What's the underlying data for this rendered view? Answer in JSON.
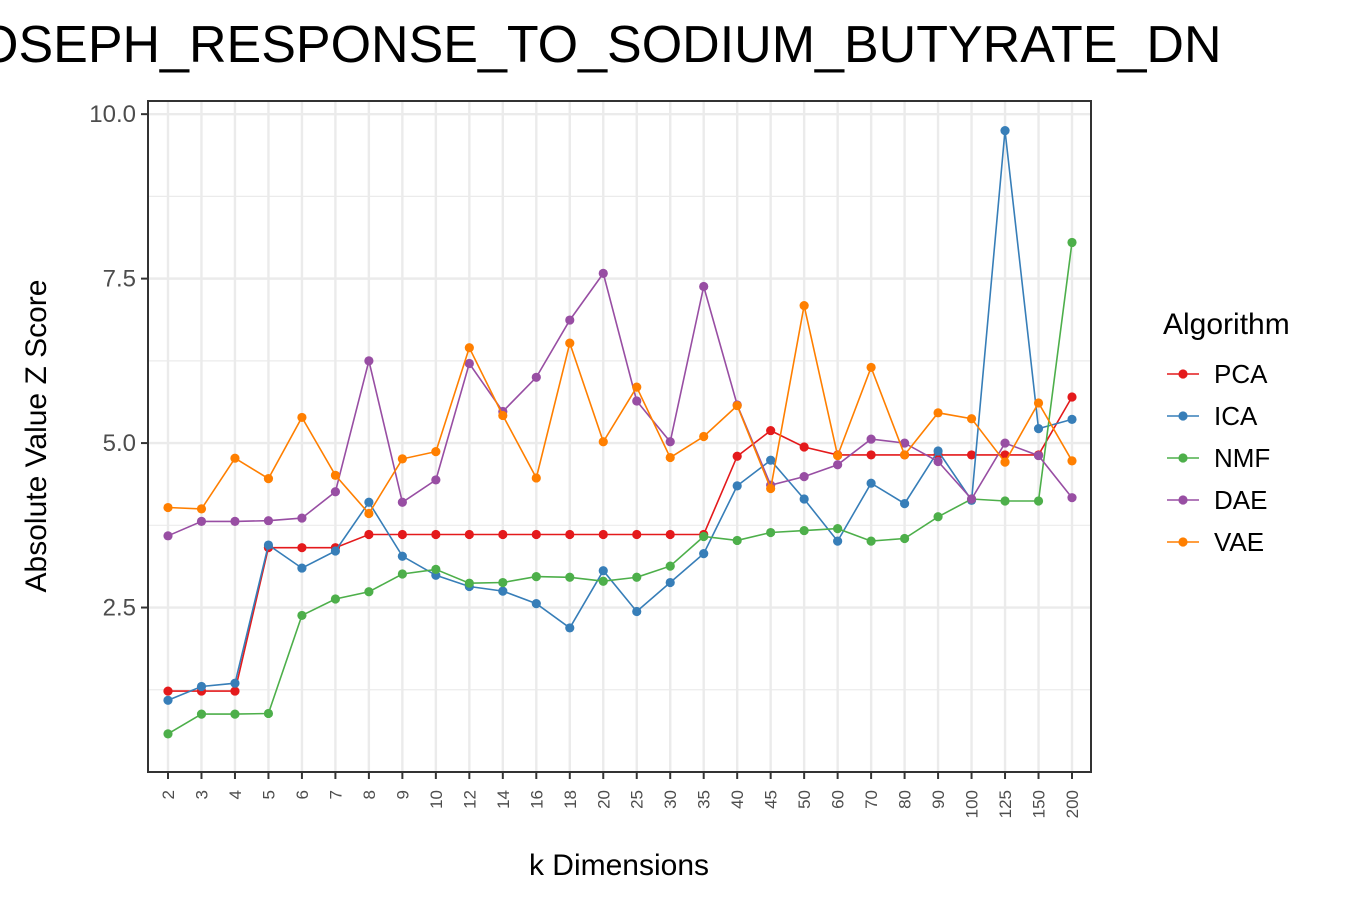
{
  "chart_data": {
    "type": "line",
    "title": "OSEPH_RESPONSE_TO_SODIUM_BUTYRATE_DN",
    "xlabel": "k Dimensions",
    "ylabel": "Absolute Value Z Score",
    "categories": [
      "2",
      "3",
      "4",
      "5",
      "6",
      "7",
      "8",
      "9",
      "10",
      "12",
      "14",
      "16",
      "18",
      "20",
      "25",
      "30",
      "35",
      "40",
      "45",
      "50",
      "60",
      "70",
      "80",
      "90",
      "100",
      "125",
      "150",
      "200"
    ],
    "ylim": [
      0.0,
      10.2
    ],
    "yticks": [
      2.5,
      5.0,
      7.5,
      10.0
    ],
    "ytick_labels": [
      "2.5",
      "5.0",
      "7.5",
      "10.0"
    ],
    "grid": true,
    "legend": {
      "title": "Algorithm",
      "placement": "right"
    },
    "series": [
      {
        "name": "PCA",
        "color": "#E41A1C",
        "values": [
          1.23,
          1.23,
          1.23,
          3.41,
          3.41,
          3.41,
          3.61,
          3.61,
          3.61,
          3.61,
          3.61,
          3.61,
          3.61,
          3.61,
          3.61,
          3.61,
          3.61,
          4.8,
          5.19,
          4.94,
          4.82,
          4.82,
          4.82,
          4.82,
          4.82,
          4.82,
          4.82,
          5.7
        ]
      },
      {
        "name": "ICA",
        "color": "#377EB8",
        "values": [
          1.09,
          1.3,
          1.35,
          3.45,
          3.1,
          3.36,
          4.1,
          3.28,
          2.99,
          2.82,
          2.75,
          2.56,
          2.19,
          3.06,
          2.44,
          2.88,
          3.32,
          4.35,
          4.74,
          4.15,
          3.51,
          4.39,
          4.08,
          4.88,
          4.13,
          9.75,
          5.22,
          5.36
        ]
      },
      {
        "name": "NMF",
        "color": "#4DAF4A",
        "values": [
          0.58,
          0.88,
          0.88,
          0.89,
          2.38,
          2.63,
          2.74,
          3.01,
          3.08,
          2.87,
          2.88,
          2.97,
          2.96,
          2.9,
          2.96,
          3.13,
          3.58,
          3.52,
          3.64,
          3.67,
          3.7,
          3.51,
          3.55,
          3.88,
          4.15,
          4.12,
          4.12,
          8.05
        ]
      },
      {
        "name": "DAE",
        "color": "#984EA3",
        "values": [
          3.59,
          3.81,
          3.81,
          3.82,
          3.86,
          4.26,
          6.25,
          4.1,
          4.44,
          6.21,
          5.48,
          6.0,
          6.87,
          7.58,
          5.64,
          5.02,
          7.38,
          5.58,
          4.36,
          4.49,
          4.67,
          5.06,
          5.0,
          4.72,
          4.15,
          5.0,
          4.81,
          4.17
        ]
      },
      {
        "name": "VAE",
        "color": "#FF7F00",
        "values": [
          4.02,
          4.0,
          4.77,
          4.46,
          5.39,
          4.51,
          3.93,
          4.76,
          4.87,
          6.45,
          5.42,
          4.47,
          6.52,
          5.02,
          5.85,
          4.78,
          5.1,
          5.57,
          4.31,
          7.09,
          4.81,
          6.15,
          4.82,
          5.46,
          5.37,
          4.71,
          5.61,
          4.73
        ]
      }
    ]
  }
}
